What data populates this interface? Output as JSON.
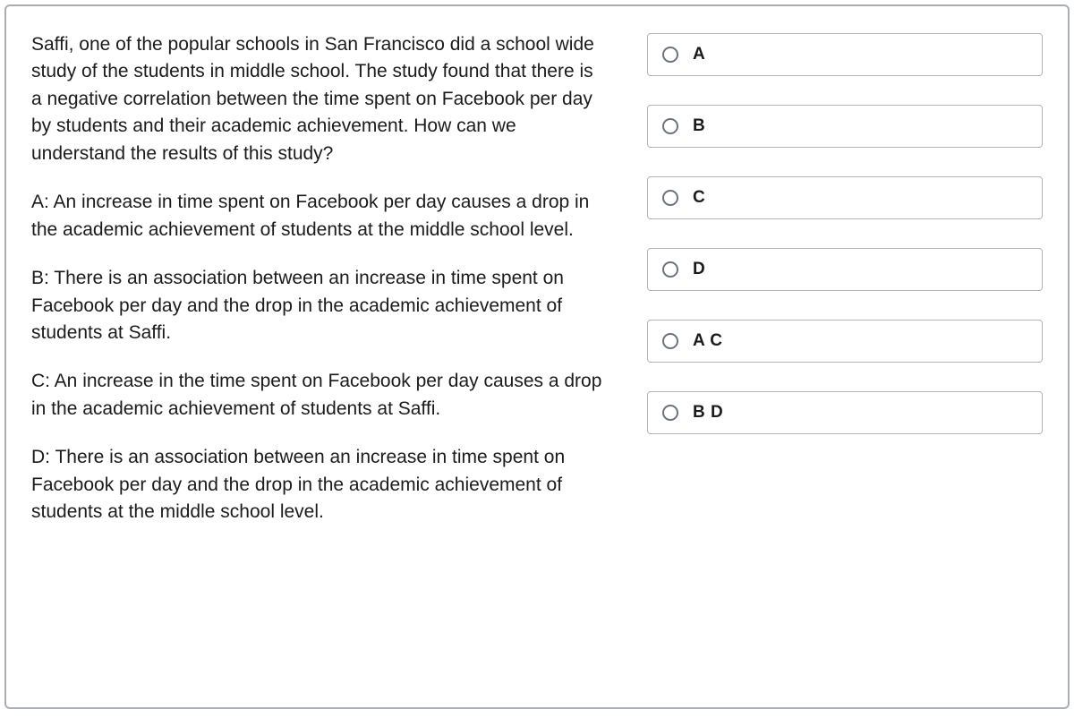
{
  "question": {
    "prompt": "Saffi, one of the popular schools in San Francisco did a school wide study of the students in middle school. The study found that there is a negative correlation between the time spent on Facebook per day by students and their academic achievement. How can we understand the results of this study?",
    "options_text": {
      "a": "A: An increase in time spent on Facebook per day causes a drop in the academic achievement of students at the middle school level.",
      "b": "B: There is an association between an increase in time spent on Facebook per day and the drop in the academic achievement of students at Saffi.",
      "c": "C: An increase in the time spent on Facebook per day causes a drop in the academic achievement of students at Saffi.",
      "d": "D: There is an association between an increase in time spent on Facebook per day and the drop in the academic achievement of students at the middle school level."
    }
  },
  "choices": [
    {
      "label": "A"
    },
    {
      "label": "B"
    },
    {
      "label": "C"
    },
    {
      "label": "D"
    },
    {
      "label": "A C"
    },
    {
      "label": "B D"
    }
  ],
  "style": {
    "border_color": "#a8adb8",
    "choice_border_color": "#b0b5be",
    "radio_border_color": "#6b7280",
    "text_color": "#1b1b1b",
    "font_size_body": 21,
    "font_size_choice": 19
  }
}
